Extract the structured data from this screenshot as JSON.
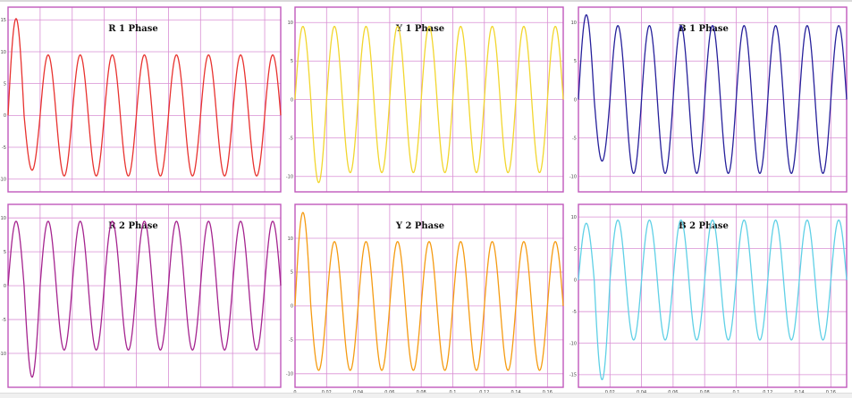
{
  "colors": {
    "grid": "#d98fd4",
    "frame": "#c058bb",
    "background": "#ffffff"
  },
  "chart_data": [
    {
      "type": "line",
      "title": "R 1 Phase",
      "xlim": [
        0,
        0.17
      ],
      "ylim": [
        -12,
        17
      ],
      "yticks": [
        15,
        10,
        5,
        0,
        -5,
        -10
      ],
      "xticks": [
        0.02,
        0.04,
        0.06,
        0.08,
        0.1,
        0.12,
        0.14,
        0.16
      ],
      "xtick_labels": [],
      "grid": true,
      "series": [
        {
          "color": "#e8322f",
          "frequency_hz": 50,
          "steady_amplitude": 9.5,
          "first_peak": 15.2,
          "first_trough": -8.6
        }
      ]
    },
    {
      "type": "line",
      "title": "Y 1 Phase",
      "xlim": [
        0,
        0.17
      ],
      "ylim": [
        -12,
        12
      ],
      "yticks": [
        10,
        5,
        0,
        -5,
        -10
      ],
      "xticks": [
        0.02,
        0.04,
        0.06,
        0.08,
        0.1,
        0.12,
        0.14,
        0.16
      ],
      "xtick_labels": [],
      "grid": true,
      "series": [
        {
          "color": "#f2d62e",
          "frequency_hz": 50,
          "steady_amplitude": 9.5,
          "first_peak": 9.5,
          "first_trough": -10.8
        }
      ]
    },
    {
      "type": "line",
      "title": "B 1 Phase",
      "xlim": [
        0,
        0.17
      ],
      "ylim": [
        -12,
        12
      ],
      "yticks": [
        10,
        5,
        0,
        -5,
        -10
      ],
      "xticks": [
        0.02,
        0.04,
        0.06,
        0.08,
        0.1,
        0.12,
        0.14,
        0.16
      ],
      "xtick_labels": [],
      "grid": true,
      "series": [
        {
          "color": "#26209b",
          "frequency_hz": 50,
          "steady_amplitude": 9.6,
          "first_peak": 11.0,
          "first_trough": -8.0
        }
      ]
    },
    {
      "type": "line",
      "title": "R 2 Phase",
      "xlim": [
        0,
        0.17
      ],
      "ylim": [
        -15,
        12
      ],
      "yticks": [
        10,
        5,
        0,
        -5,
        -10
      ],
      "xticks": [
        0.02,
        0.04,
        0.06,
        0.08,
        0.1,
        0.12,
        0.14,
        0.16
      ],
      "xtick_labels": [],
      "grid": true,
      "series": [
        {
          "color": "#a5248f",
          "frequency_hz": 50,
          "steady_amplitude": 9.5,
          "first_peak": 9.5,
          "first_trough": -13.5
        }
      ]
    },
    {
      "type": "line",
      "title": "Y 2 Phase",
      "xlim": [
        0,
        0.17
      ],
      "ylim": [
        -12,
        15
      ],
      "yticks": [
        10,
        5,
        0,
        -5,
        -10
      ],
      "xticks": [
        0,
        0.02,
        0.04,
        0.06,
        0.08,
        0.1,
        0.12,
        0.14,
        0.16
      ],
      "xtick_labels": [
        "0",
        "0.02",
        "0.04",
        "0.06",
        "0.08",
        "0.1",
        "0.12",
        "0.14",
        "0.16"
      ],
      "grid": true,
      "series": [
        {
          "color": "#f59b12",
          "frequency_hz": 50,
          "steady_amplitude": 9.5,
          "first_peak": 13.8,
          "first_trough": -9.5
        }
      ]
    },
    {
      "type": "line",
      "title": "B 2 Phase",
      "xlim": [
        0,
        0.17
      ],
      "ylim": [
        -17,
        12
      ],
      "yticks": [
        10,
        5,
        0,
        -5,
        -10,
        -15
      ],
      "xticks": [
        0.02,
        0.04,
        0.06,
        0.08,
        0.1,
        0.12,
        0.14,
        0.16
      ],
      "xtick_labels": [
        "0.02",
        "0.04",
        "0.06",
        "0.08",
        "0.1",
        "0.12",
        "0.14",
        "0.16"
      ],
      "grid": true,
      "series": [
        {
          "color": "#5fd0e6",
          "frequency_hz": 50,
          "steady_amplitude": 9.5,
          "first_peak": 9.0,
          "first_trough": -15.8
        }
      ]
    }
  ]
}
